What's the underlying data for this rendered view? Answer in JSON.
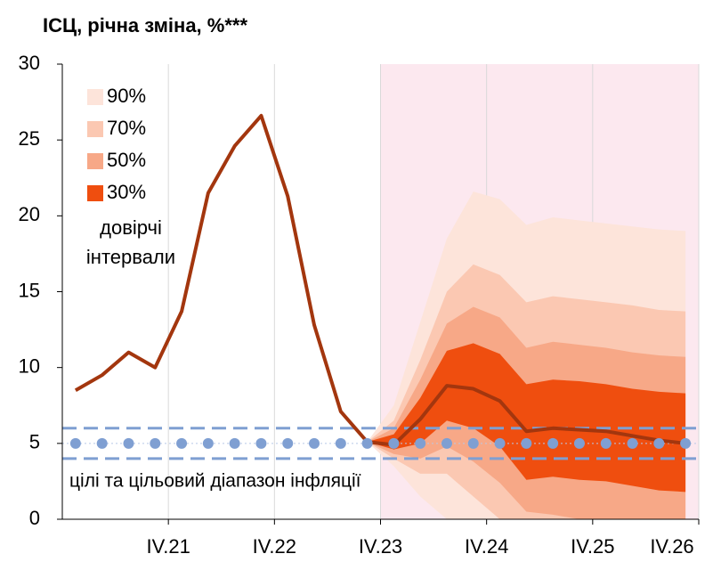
{
  "chart_data": {
    "type": "fan",
    "title": "ІСЦ, річна зміна, %***",
    "x": [
      0.5,
      1.5,
      2.5,
      3.5,
      4.5,
      5.5,
      6.5,
      7.5,
      8.5,
      9.5,
      10.5,
      11.5,
      12.5,
      13.5,
      14.5,
      15.5,
      16.5,
      17.5,
      18.5,
      19.5,
      20.5,
      21.5,
      22.5,
      23.5
    ],
    "xlim": [
      0,
      24
    ],
    "xticks": [
      {
        "value": 4,
        "label": "IV.21"
      },
      {
        "value": 8,
        "label": "IV.22"
      },
      {
        "value": 12,
        "label": "IV.23"
      },
      {
        "value": 16,
        "label": "IV.24"
      },
      {
        "value": 20,
        "label": "IV.25"
      },
      {
        "value": 24,
        "label": "IV.26"
      }
    ],
    "ylim": [
      0,
      30
    ],
    "yticks": [
      0,
      5,
      10,
      15,
      20,
      25,
      30
    ],
    "grid": "x",
    "line": {
      "color": "#a3360e",
      "values": [
        8.5,
        9.5,
        11,
        10,
        13.7,
        21.5,
        24.6,
        26.6,
        21.3,
        12.8,
        7.1,
        5.1,
        4.9,
        6.6,
        8.8,
        8.6,
        7.8,
        5.8,
        6.0,
        5.9,
        5.8,
        5.5,
        5.2,
        5.0
      ]
    },
    "bands": [
      {
        "name": "90%",
        "color": "#fde4da",
        "upper": [
          null,
          null,
          null,
          null,
          null,
          null,
          null,
          null,
          null,
          null,
          null,
          5.1,
          7.5,
          13,
          18.5,
          21.6,
          21.1,
          19.4,
          19.9,
          19.7,
          19.5,
          19.3,
          19.1,
          19.0
        ],
        "lower": [
          null,
          null,
          null,
          null,
          null,
          null,
          null,
          null,
          null,
          null,
          null,
          5.1,
          3.5,
          1.5,
          0,
          0,
          0,
          0,
          0,
          0,
          0,
          0,
          0,
          0
        ]
      },
      {
        "name": "70%",
        "color": "#fbc8b2",
        "upper": [
          null,
          null,
          null,
          null,
          null,
          null,
          null,
          null,
          null,
          null,
          null,
          5.1,
          6.5,
          10.5,
          15,
          16.8,
          16.1,
          14.3,
          14.7,
          14.5,
          14.3,
          14.1,
          13.8,
          13.7
        ],
        "lower": [
          null,
          null,
          null,
          null,
          null,
          null,
          null,
          null,
          null,
          null,
          null,
          5.1,
          4.0,
          3.0,
          3.0,
          1.5,
          0,
          0,
          0,
          0,
          0,
          0,
          0,
          0
        ]
      },
      {
        "name": "50%",
        "color": "#f7a887",
        "upper": [
          null,
          null,
          null,
          null,
          null,
          null,
          null,
          null,
          null,
          null,
          null,
          5.1,
          6.0,
          9.2,
          12.9,
          14.0,
          13.3,
          11.3,
          11.7,
          11.5,
          11.3,
          11.0,
          10.8,
          10.7
        ],
        "lower": [
          null,
          null,
          null,
          null,
          null,
          null,
          null,
          null,
          null,
          null,
          null,
          5.1,
          4.3,
          4.0,
          4.8,
          3.8,
          2.4,
          0.5,
          0.3,
          0,
          0,
          0,
          0,
          0
        ]
      },
      {
        "name": "30%",
        "color": "#ef4e0f",
        "upper": [
          null,
          null,
          null,
          null,
          null,
          null,
          null,
          null,
          null,
          null,
          null,
          5.1,
          5.6,
          8.0,
          11.1,
          11.6,
          10.9,
          8.9,
          9.2,
          9.1,
          8.9,
          8.6,
          8.4,
          8.3
        ],
        "lower": [
          null,
          null,
          null,
          null,
          null,
          null,
          null,
          null,
          null,
          null,
          null,
          5.1,
          4.6,
          5.0,
          6.5,
          6.0,
          4.8,
          2.6,
          2.8,
          2.6,
          2.5,
          2.2,
          1.9,
          1.8
        ]
      }
    ],
    "bands_label": [
      "довірчі",
      "інтервали"
    ],
    "forecast_region": {
      "from": 12,
      "to": 24,
      "color": "#fce8ef"
    },
    "target": {
      "value": 5,
      "low": 4,
      "high": 6,
      "color": "#7f9fd2",
      "label": "цілі та цільовий діапазон інфляції"
    }
  }
}
